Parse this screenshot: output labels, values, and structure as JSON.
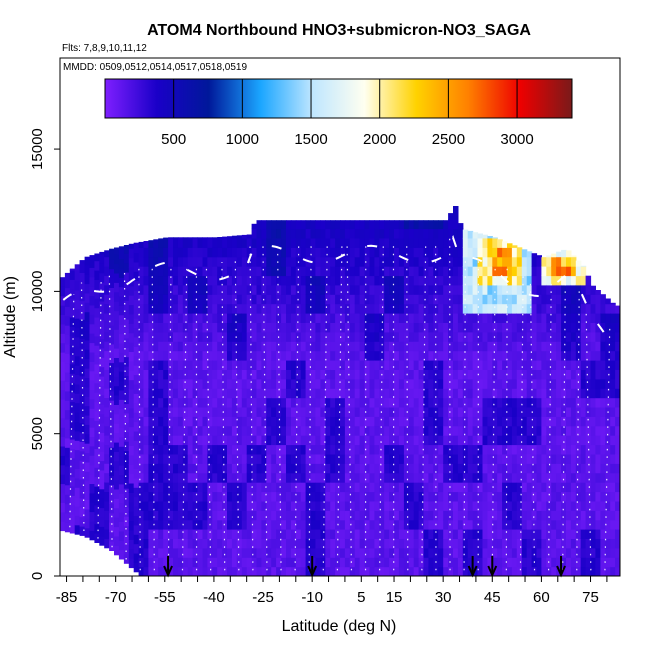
{
  "chart_data": {
    "type": "heatmap",
    "title": "ATOM4 Northbound HNO3+submicron-NO3_SAGA",
    "subtitle_flights": "Flts: 7,8,9,10,11,12",
    "subtitle_dates": "MMDD: 0509,0512,0514,0517,0518,0519",
    "xlabel": "Latitude (deg N)",
    "ylabel": "Altitude (m)",
    "xlim": [
      -87,
      84
    ],
    "ylim": [
      0,
      18200
    ],
    "x_ticks": [
      -85,
      -70,
      -55,
      -40,
      -25,
      -10,
      5,
      15,
      30,
      45,
      60,
      75
    ],
    "x_tick_labels": [
      "-85",
      "-70",
      "-55",
      "-40",
      "-25",
      "-10",
      "5",
      "15",
      "30",
      "45",
      "60",
      "75"
    ],
    "y_ticks": [
      0,
      5000,
      10000,
      15000
    ],
    "y_tick_labels": [
      "0",
      "5000",
      "10000",
      "15000"
    ],
    "colorbar": {
      "min": 0,
      "max": 3400,
      "ticks": [
        500,
        1000,
        1500,
        2000,
        2500,
        3000
      ],
      "tick_labels": [
        "500",
        "1000",
        "1500",
        "2000",
        "2500",
        "3000"
      ],
      "stops": [
        "#7f1fff",
        "#1a00c8",
        "#00189a",
        "#1ba6ff",
        "#bfe6ff",
        "#fffff0",
        "#ffd200",
        "#ff8000",
        "#ee0000",
        "#7a1a1a"
      ]
    },
    "flight_profile_arrows_lat": [
      -54,
      -10,
      39,
      45,
      66
    ],
    "ceiling_profile": [
      {
        "lat": -87,
        "alt": 10500
      },
      {
        "lat": -80,
        "alt": 11200
      },
      {
        "lat": -72,
        "alt": 11500
      },
      {
        "lat": -65,
        "alt": 11700
      },
      {
        "lat": -55,
        "alt": 11900
      },
      {
        "lat": -40,
        "alt": 11900
      },
      {
        "lat": -30,
        "alt": 12000
      },
      {
        "lat": -28,
        "alt": 12500
      },
      {
        "lat": -15,
        "alt": 12500
      },
      {
        "lat": 5,
        "alt": 12500
      },
      {
        "lat": 20,
        "alt": 12500
      },
      {
        "lat": 30,
        "alt": 12500
      },
      {
        "lat": 33,
        "alt": 13000
      },
      {
        "lat": 35,
        "alt": 12200
      },
      {
        "lat": 45,
        "alt": 11900
      },
      {
        "lat": 60,
        "alt": 11200
      },
      {
        "lat": 67,
        "alt": 11500
      },
      {
        "lat": 72,
        "alt": 10900
      },
      {
        "lat": 75,
        "alt": 10200
      },
      {
        "lat": 82,
        "alt": 9500
      }
    ],
    "floor_profile": [
      {
        "lat": -87,
        "alt": 1600
      },
      {
        "lat": -80,
        "alt": 1400
      },
      {
        "lat": -72,
        "alt": 900
      },
      {
        "lat": -68,
        "alt": 500
      },
      {
        "lat": -63,
        "alt": 0
      },
      {
        "lat": 82,
        "alt": 0
      }
    ],
    "high_value_regions": [
      {
        "lat_min": 36,
        "lat_max": 56,
        "alt_min": 9200,
        "alt_max": 12000,
        "value": 1500
      },
      {
        "lat_min": 40,
        "lat_max": 53,
        "alt_min": 10000,
        "alt_max": 11800,
        "value": 2050
      },
      {
        "lat_min": 44,
        "lat_max": 50,
        "alt_min": 10400,
        "alt_max": 11400,
        "value": 2450
      },
      {
        "lat_min": 60,
        "lat_max": 72,
        "alt_min": 10000,
        "alt_max": 11400,
        "value": 1900
      },
      {
        "lat_min": 63,
        "lat_max": 69,
        "alt_min": 10400,
        "alt_max": 11000,
        "value": 2450
      }
    ]
  }
}
